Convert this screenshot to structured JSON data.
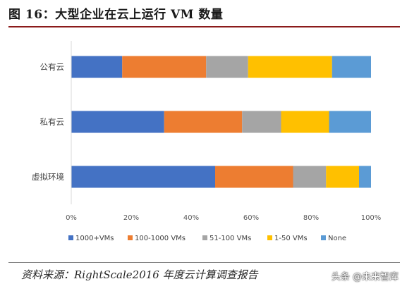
{
  "figure": {
    "title": "图 16：大型企业在云上运行 VM 数量",
    "source": "资料来源：RightScale2016 年度云计算调查报告",
    "watermark": "头条 @未来智库"
  },
  "chart_data": {
    "type": "bar",
    "orientation": "horizontal",
    "stacked": "percent",
    "categories": [
      "公有云",
      "私有云",
      "虚拟环境"
    ],
    "series": [
      {
        "name": "1000+VMs",
        "color": "#4472C4",
        "values": [
          17,
          31,
          48
        ]
      },
      {
        "name": "100-1000 VMs",
        "color": "#ED7D31",
        "values": [
          28,
          26,
          26
        ]
      },
      {
        "name": "51-100 VMs",
        "color": "#A5A5A5",
        "values": [
          14,
          13,
          11
        ]
      },
      {
        "name": "1-50 VMs",
        "color": "#FFC000",
        "values": [
          28,
          16,
          11
        ]
      },
      {
        "name": "None",
        "color": "#5B9BD5",
        "values": [
          13,
          14,
          4
        ]
      }
    ],
    "xlim": [
      0,
      100
    ],
    "xticks": [
      "0%",
      "20%",
      "40%",
      "60%",
      "80%",
      "100%"
    ],
    "xlabel": "",
    "ylabel": "",
    "grid": false,
    "legend_position": "bottom"
  }
}
